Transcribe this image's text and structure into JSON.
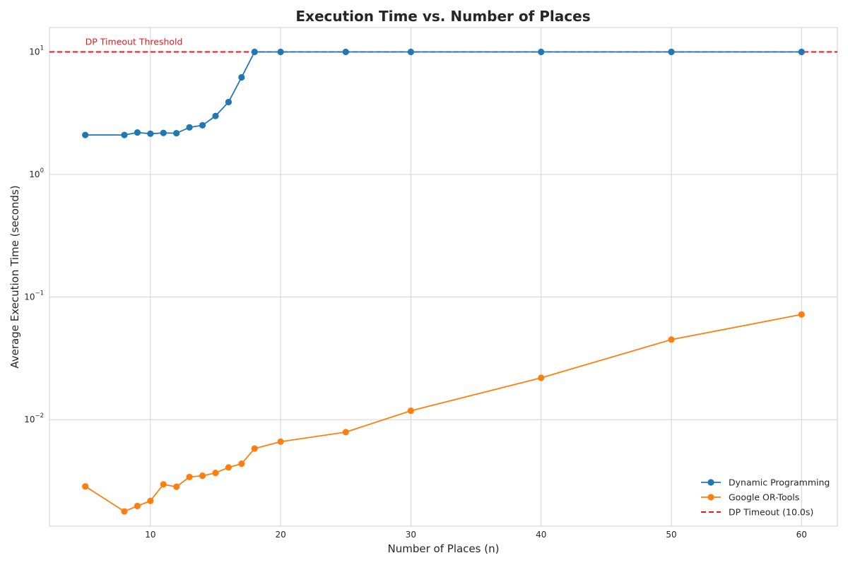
{
  "chart_data": {
    "type": "line",
    "title": "Execution Time vs. Number of Places",
    "xlabel": "Number of Places (n)",
    "ylabel": "Average Execution Time (seconds)",
    "xlim": [
      2.25,
      62.75
    ],
    "ylim": [
      0.00135,
      15.8
    ],
    "yscale": "log",
    "grid": true,
    "legend_position": "bottom-right",
    "x_ticks": [
      10,
      20,
      30,
      40,
      50,
      60
    ],
    "y_ticks": [
      {
        "value": 0.01,
        "base": "10",
        "exp": "−2"
      },
      {
        "value": 0.1,
        "base": "10",
        "exp": "−1"
      },
      {
        "value": 1,
        "base": "10",
        "exp": "0"
      },
      {
        "value": 10,
        "base": "10",
        "exp": "1"
      }
    ],
    "series": [
      {
        "name": "Dynamic Programming",
        "color": "#1f77b4",
        "marker": "circle",
        "x": [
          5,
          8,
          9,
          10,
          11,
          12,
          13,
          14,
          15,
          16,
          17,
          18,
          20,
          25,
          30,
          40,
          50,
          60
        ],
        "y": [
          2.1,
          2.1,
          2.2,
          2.15,
          2.18,
          2.17,
          2.42,
          2.52,
          3.0,
          3.9,
          6.2,
          10.0,
          10.0,
          10.0,
          10.0,
          10.0,
          10.0,
          10.0
        ]
      },
      {
        "name": "Google OR-Tools",
        "color": "#ff7f0e",
        "marker": "circle",
        "x": [
          5,
          8,
          9,
          10,
          11,
          12,
          13,
          14,
          15,
          16,
          17,
          18,
          20,
          25,
          30,
          40,
          50,
          60
        ],
        "y": [
          0.00285,
          0.00178,
          0.00197,
          0.00217,
          0.00296,
          0.00283,
          0.0034,
          0.00348,
          0.00367,
          0.00407,
          0.00436,
          0.0058,
          0.0066,
          0.0079,
          0.0118,
          0.0219,
          0.0449,
          0.072
        ]
      }
    ],
    "reference_lines": [
      {
        "name": "DP Timeout (10.0s)",
        "y": 10.0,
        "color": "#e41a1c",
        "style": "dashed"
      }
    ],
    "annotations": [
      {
        "text": "DP Timeout Threshold",
        "x": 5,
        "y": 10.0,
        "color": "#e41a1c"
      }
    ]
  }
}
